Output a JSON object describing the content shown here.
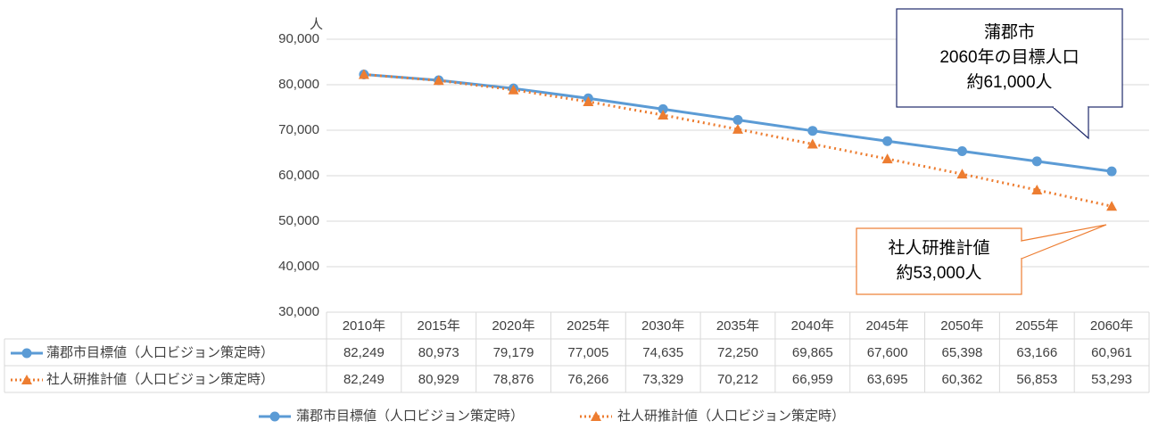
{
  "chart_data": {
    "type": "line",
    "y_unit": "人",
    "categories": [
      "2010年",
      "2015年",
      "2020年",
      "2025年",
      "2030年",
      "2035年",
      "2040年",
      "2045年",
      "2050年",
      "2055年",
      "2060年"
    ],
    "series": [
      {
        "name": "蒲郡市目標値（人口ビジョン策定時）",
        "color": "#5b9bd5",
        "marker": "circle",
        "line_style": "solid",
        "values": [
          82249,
          80973,
          79179,
          77005,
          74635,
          72250,
          69865,
          67600,
          65398,
          63166,
          60961
        ],
        "value_labels": [
          "82,249",
          "80,973",
          "79,179",
          "77,005",
          "74,635",
          "72,250",
          "69,865",
          "67,600",
          "65,398",
          "63,166",
          "60,961"
        ]
      },
      {
        "name": "社人研推計値（人口ビジョン策定時）",
        "color": "#ed7d31",
        "marker": "triangle",
        "line_style": "dotted",
        "values": [
          82249,
          80929,
          78876,
          76266,
          73329,
          70212,
          66959,
          63695,
          60362,
          56853,
          53293
        ],
        "value_labels": [
          "82,249",
          "80,929",
          "78,876",
          "76,266",
          "73,329",
          "70,212",
          "66,959",
          "63,695",
          "60,362",
          "56,853",
          "53,293"
        ]
      }
    ],
    "ylim": [
      30000,
      90000
    ],
    "yticks": [
      {
        "value": 30000,
        "label": "30,000"
      },
      {
        "value": 40000,
        "label": "40,000"
      },
      {
        "value": 50000,
        "label": "50,000"
      },
      {
        "value": 60000,
        "label": "60,000"
      },
      {
        "value": 70000,
        "label": "70,000"
      },
      {
        "value": 80000,
        "label": "80,000"
      },
      {
        "value": 90000,
        "label": "90,000"
      }
    ],
    "grid": true,
    "legend": "bottom",
    "data_table": true,
    "annotations": [
      {
        "lines": [
          "蒲郡市",
          "2060年の目標人口",
          "約61,000人"
        ],
        "border": "#1f2a6b"
      },
      {
        "lines": [
          "社人研推計値",
          "約53,000人"
        ],
        "border": "#ed7d31"
      }
    ]
  }
}
